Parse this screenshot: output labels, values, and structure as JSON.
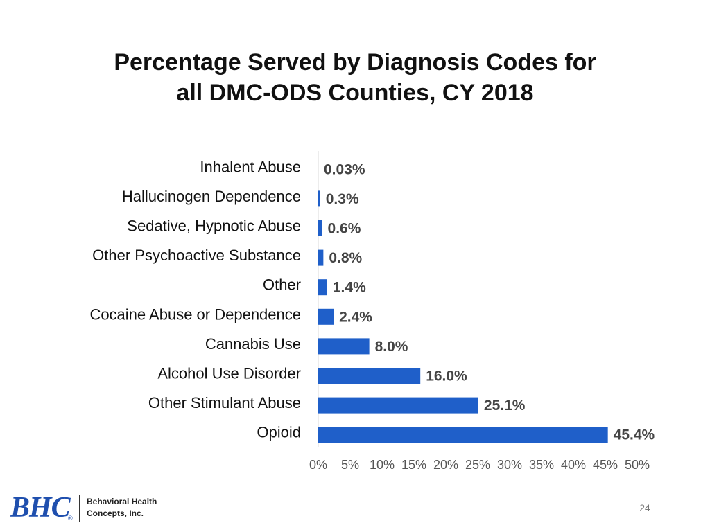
{
  "slide": {
    "title_line1": "Percentage Served by Diagnosis Codes for",
    "title_line2": "all DMC-ODS Counties, CY 2018",
    "page_number": "24"
  },
  "logo": {
    "mark": "BHC",
    "registered": "®",
    "company_line1": "Behavioral Health",
    "company_line2": "Concepts, Inc."
  },
  "colors": {
    "bar": "#1f5fc9",
    "axis": "#d9d9d9"
  },
  "chart_data": {
    "type": "bar",
    "orientation": "horizontal",
    "title": "Percentage Served by Diagnosis Codes for all DMC-ODS Counties, CY 2018",
    "categories": [
      "Inhalent Abuse",
      "Hallucinogen Dependence",
      "Sedative, Hypnotic Abuse",
      "Other Psychoactive Substance",
      "Other",
      "Cocaine Abuse or Dependence",
      "Cannabis Use",
      "Alcohol Use Disorder",
      "Other Stimulant Abuse",
      "Opioid"
    ],
    "values": [
      0.03,
      0.3,
      0.6,
      0.8,
      1.4,
      2.4,
      8.0,
      16.0,
      25.1,
      45.4
    ],
    "value_labels": [
      "0.03%",
      "0.3%",
      "0.6%",
      "0.8%",
      "1.4%",
      "2.4%",
      "8.0%",
      "16.0%",
      "25.1%",
      "45.4%"
    ],
    "xlim": [
      0,
      50
    ],
    "x_ticks": [
      0,
      5,
      10,
      15,
      20,
      25,
      30,
      35,
      40,
      45,
      50
    ],
    "x_tick_labels": [
      "0%",
      "5%",
      "10%",
      "15%",
      "20%",
      "25%",
      "30%",
      "35%",
      "40%",
      "45%",
      "50%"
    ],
    "xlabel": "",
    "ylabel": "",
    "grid": false,
    "legend": "none"
  }
}
